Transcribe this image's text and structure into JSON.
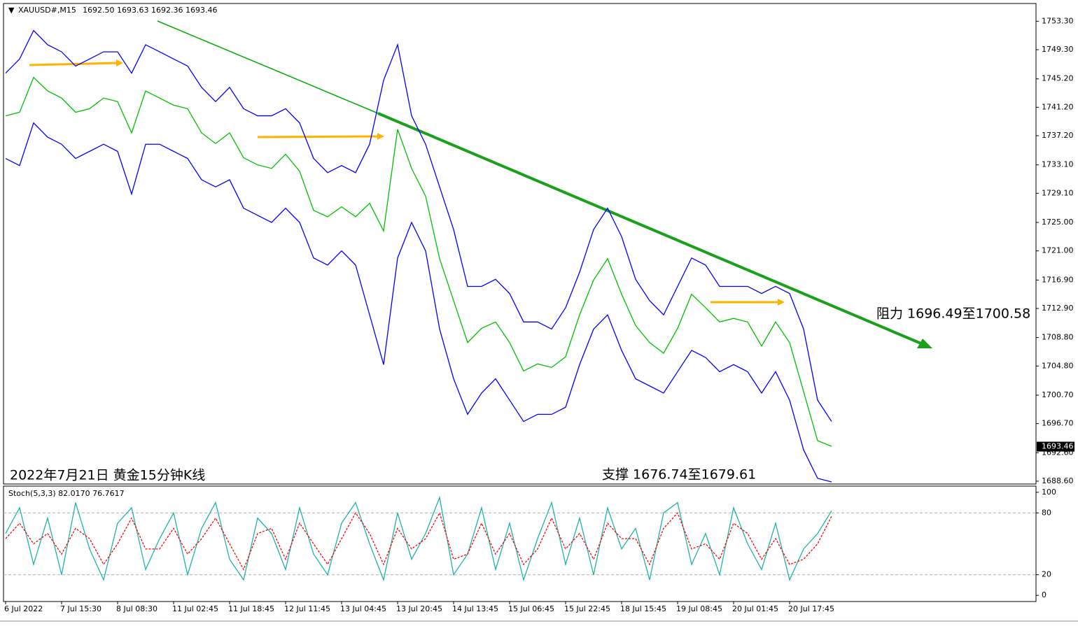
{
  "chart_data": [
    {
      "type": "line",
      "title": "XAUUSD#,M15",
      "ohlc_label": "1692.50 1693.63 1692.36 1693.46",
      "caption": "2022年7月21日 黄金15分钟K线",
      "resistance_note": "阻力 1696.49至1700.58",
      "support_note": "支撑 1676.74至1679.61",
      "last_price": 1693.46,
      "categories": [
        "6 Jul 2022",
        null,
        null,
        null,
        "7 Jul 15:30",
        null,
        null,
        null,
        "8 Jul 08:30",
        null,
        null,
        null,
        "11 Jul 02:45",
        null,
        null,
        null,
        "11 Jul 18:45",
        null,
        null,
        null,
        "12 Jul 11:45",
        null,
        null,
        null,
        "13 Jul 04:45",
        null,
        null,
        null,
        "13 Jul 20:45",
        null,
        null,
        null,
        "14 Jul 13:45",
        null,
        null,
        null,
        "15 Jul 06:45",
        null,
        null,
        null,
        "15 Jul 22:45",
        null,
        null,
        null,
        "18 Jul 15:45",
        null,
        null,
        null,
        "19 Jul 08:45",
        null,
        null,
        null,
        "20 Jul 01:45",
        null,
        null,
        null,
        "20 Jul 17:45",
        null,
        null,
        null
      ],
      "series": [
        {
          "color": "#00c000",
          "values": [
            1740.0,
            1740.5,
            1745.4,
            1743.5,
            1742.5,
            1740.5,
            1741.0,
            1742.5,
            1742.0,
            1737.6,
            1743.5,
            1742.5,
            1741.5,
            1741.0,
            1737.6,
            1736.1,
            1737.6,
            1734.1,
            1733.1,
            1732.6,
            1734.6,
            1732.2,
            1726.7,
            1725.8,
            1727.2,
            1725.8,
            1727.7,
            1723.8,
            1738.1,
            1732.6,
            1728.7,
            1719.9,
            1714.0,
            1708.1,
            1710.1,
            1711.0,
            1708.1,
            1704.1,
            1705.1,
            1704.6,
            1706.1,
            1712.0,
            1716.9,
            1719.9,
            1714.9,
            1710.5,
            1708.1,
            1706.6,
            1710.1,
            1714.9,
            1713.0,
            1711.0,
            1711.5,
            1711.0,
            1707.6,
            1711.0,
            1708.1,
            1701.2,
            1694.3,
            1693.5
          ]
        },
        {
          "color": "#0000ff",
          "values": [
            1746,
            1748,
            1752,
            1750,
            1749,
            1747,
            1748,
            1749,
            1749,
            1746,
            1750,
            1749,
            1748,
            1747,
            1744,
            1742,
            1744,
            1741,
            1740,
            1740,
            1741,
            1739,
            1734,
            1732,
            1733,
            1732,
            1736,
            1745,
            1750,
            1740,
            1736,
            1730,
            1724,
            1716,
            1716,
            1717,
            1715,
            1711,
            1711,
            1710,
            1713,
            1718,
            1724,
            1727,
            1723,
            1717,
            1714,
            1712,
            1716,
            1720,
            1719,
            1716,
            1716,
            1716,
            1715,
            1716,
            1715,
            1710,
            1700,
            1697
          ]
        },
        {
          "color": "#0000ff",
          "values": [
            1734,
            1733,
            1739,
            1737,
            1736,
            1734,
            1735,
            1736,
            1735,
            1729,
            1736,
            1736,
            1735,
            1734,
            1731,
            1730,
            1731,
            1727,
            1726,
            1725,
            1727,
            1725,
            1720,
            1719,
            1721,
            1719,
            1712,
            1705,
            1720,
            1725,
            1721,
            1710,
            1703,
            1698,
            1701,
            1703,
            1700,
            1697,
            1698,
            1698,
            1699,
            1705,
            1710,
            1712,
            1707,
            1703,
            1702,
            1701,
            1704,
            1707,
            1706,
            1704,
            1705,
            1704,
            1701,
            1704,
            1700,
            1693,
            1689,
            1688.5
          ]
        }
      ],
      "ylim": [
        1688.2,
        1755.8
      ],
      "yticks": [
        {
          "value": 1753.3,
          "label": "1753.30"
        },
        {
          "value": 1749.3,
          "label": "1749.30"
        },
        {
          "value": 1745.2,
          "label": "1745.20"
        },
        {
          "value": 1741.2,
          "label": "1741.20"
        },
        {
          "value": 1737.2,
          "label": "1737.20"
        },
        {
          "value": 1733.1,
          "label": "1733.10"
        },
        {
          "value": 1729.1,
          "label": "1729.10"
        },
        {
          "value": 1725,
          "label": "1725.00"
        },
        {
          "value": 1721,
          "label": "1721.00"
        },
        {
          "value": 1716.9,
          "label": "1716.90"
        },
        {
          "value": 1712.9,
          "label": "1712.90"
        },
        {
          "value": 1708.8,
          "label": "1708.80"
        },
        {
          "value": 1704.8,
          "label": "1704.80"
        },
        {
          "value": 1700.7,
          "label": "1700.70"
        },
        {
          "value": 1696.7,
          "label": "1696.70"
        },
        {
          "value": 1692.6,
          "label": "1692.60"
        },
        {
          "value": 1688.6,
          "label": "1688.60"
        }
      ]
    },
    {
      "type": "line",
      "title": "Stoch(5,3,3) 82.0170 76.7617",
      "series": [
        {
          "color": "#20b2aa",
          "values": [
            60,
            85,
            30,
            75,
            20,
            90,
            45,
            15,
            70,
            85,
            25,
            55,
            80,
            20,
            65,
            90,
            35,
            15,
            75,
            60,
            25,
            85,
            40,
            20,
            70,
            90,
            50,
            15,
            80,
            35,
            60,
            95,
            20,
            40,
            85,
            25,
            70,
            15,
            55,
            90,
            30,
            75,
            20,
            85,
            45,
            65,
            15,
            80,
            90,
            30,
            60,
            20,
            85,
            50,
            25,
            70,
            15,
            45,
            60,
            82.017
          ]
        },
        {
          "color": "#ff0000",
          "values": [
            55,
            70,
            50,
            60,
            40,
            65,
            55,
            30,
            50,
            75,
            45,
            45,
            65,
            40,
            55,
            75,
            50,
            25,
            60,
            65,
            35,
            70,
            50,
            30,
            55,
            80,
            60,
            30,
            65,
            45,
            55,
            80,
            35,
            40,
            70,
            40,
            60,
            30,
            45,
            75,
            45,
            60,
            35,
            70,
            55,
            55,
            30,
            65,
            80,
            45,
            50,
            35,
            70,
            60,
            35,
            55,
            30,
            35,
            50,
            76.7617
          ]
        }
      ],
      "ylim": [
        -6,
        106
      ],
      "yticks": [
        100,
        80,
        20,
        0
      ],
      "grid": [
        80,
        20
      ]
    }
  ]
}
